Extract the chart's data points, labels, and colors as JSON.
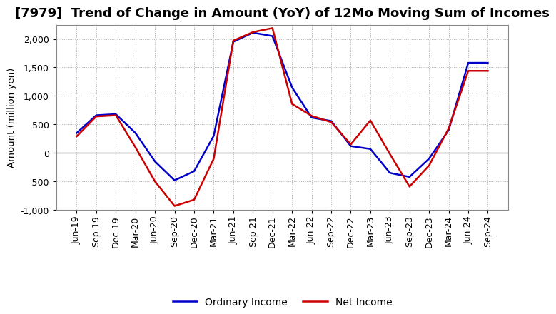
{
  "title": "[7979]  Trend of Change in Amount (YoY) of 12Mo Moving Sum of Incomes",
  "ylabel": "Amount (million yen)",
  "ylim": [
    -1000,
    2250
  ],
  "yticks": [
    -1000,
    -500,
    0,
    500,
    1000,
    1500,
    2000
  ],
  "background_color": "#ffffff",
  "grid_color": "#aaaaaa",
  "labels": [
    "Jun-19",
    "Sep-19",
    "Dec-19",
    "Mar-20",
    "Jun-20",
    "Sep-20",
    "Dec-20",
    "Mar-21",
    "Jun-21",
    "Sep-21",
    "Dec-21",
    "Mar-22",
    "Jun-22",
    "Sep-22",
    "Dec-22",
    "Mar-23",
    "Jun-23",
    "Sep-23",
    "Dec-23",
    "Mar-24",
    "Jun-24",
    "Sep-24"
  ],
  "ordinary_income": [
    350,
    660,
    680,
    350,
    -150,
    -480,
    -320,
    300,
    1950,
    2110,
    2050,
    1150,
    620,
    560,
    120,
    70,
    -350,
    -420,
    -100,
    400,
    1580,
    1580
  ],
  "net_income": [
    290,
    640,
    660,
    100,
    -500,
    -930,
    -820,
    -100,
    1970,
    2120,
    2190,
    860,
    650,
    540,
    150,
    570,
    -20,
    -590,
    -220,
    430,
    1440,
    1440
  ],
  "ordinary_color": "#0000cc",
  "net_color": "#cc0000",
  "ordinary_label": "Ordinary Income",
  "net_label": "Net Income",
  "title_fontsize": 13,
  "axis_label_fontsize": 9.5,
  "tick_fontsize": 9,
  "legend_fontsize": 10
}
